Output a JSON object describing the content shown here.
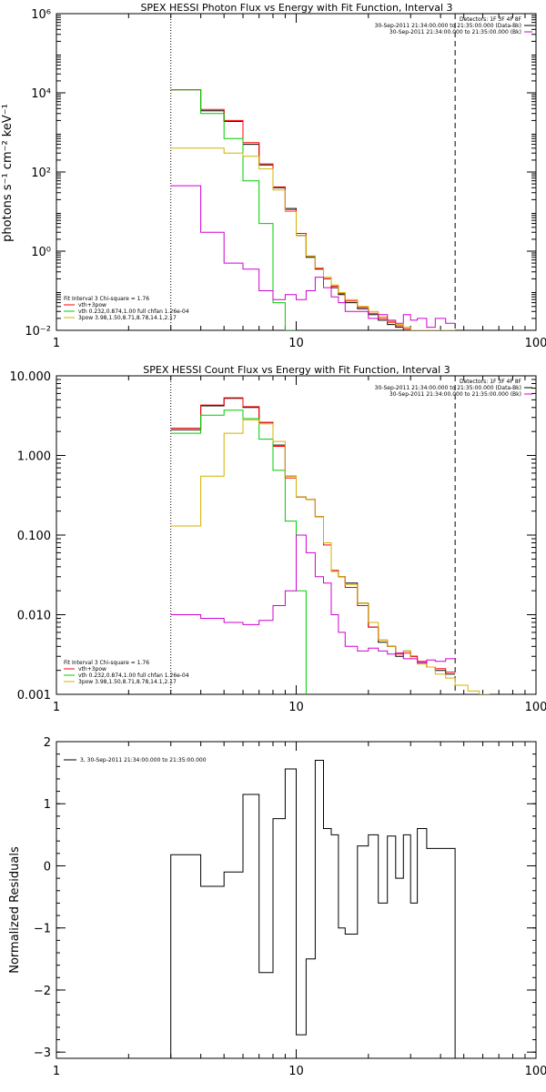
{
  "chart_data": [
    {
      "type": "line",
      "title": "SPEX HESSI Photon Flux vs Energy with Fit Function, Interval 3",
      "ylabel": "photons s⁻¹ cm⁻² keV⁻¹",
      "xlabel": "",
      "xscale": "log",
      "yscale": "log",
      "xlim": [
        1,
        100
      ],
      "ylim": [
        0.01,
        1000000
      ],
      "xticks": [
        {
          "value": 1,
          "label": "1"
        },
        {
          "value": 10,
          "label": "10"
        },
        {
          "value": 100,
          "label": "100"
        }
      ],
      "yticks": [
        {
          "value": 0.01,
          "label": "10⁻²"
        },
        {
          "value": 1,
          "label": "10⁰"
        },
        {
          "value": 100,
          "label": "10²"
        },
        {
          "value": 10000,
          "label": "10⁴"
        },
        {
          "value": 1000000,
          "label": "10⁶"
        }
      ],
      "vlines": [
        {
          "x": 3,
          "style": "dotted"
        },
        {
          "x": 46,
          "style": "dashed"
        }
      ],
      "legend_tr": [
        {
          "text": "Detectors: 1F 3F 4F 8F",
          "color": "#000000"
        },
        {
          "text": "30-Sep-2011 21:34:00.000 to 21:35:00.000 (Data-Bk)",
          "color": "#000000"
        },
        {
          "text": "30-Sep-2011 21:34:00.000 to 21:35:00.000 (Bk)",
          "color": "#d000d0"
        }
      ],
      "legend_bl": [
        {
          "text": "Fit Interval 3   Chi-square = 1.76",
          "color": "#000000"
        },
        {
          "text": "vth+3pow",
          "color": "#ff0000"
        },
        {
          "text": "vth 0.232,0.874,1.00  full chfan 1.26e-04",
          "color": "#00cc00"
        },
        {
          "text": "3pow 3.98,1.50,8.71,8.78,14.1,2.17",
          "color": "#d4b000"
        }
      ],
      "series": [
        {
          "name": "Data-Bk",
          "color": "#000000",
          "edges": [
            3,
            4,
            5,
            6,
            7,
            8,
            9,
            10,
            11,
            12,
            13,
            14,
            15,
            16,
            18,
            20,
            22,
            24,
            26,
            28,
            30,
            32,
            35,
            38,
            42,
            46
          ],
          "values": [
            12000,
            3500,
            1900,
            500,
            150,
            40,
            12,
            2.5,
            0.7,
            0.35,
            0.2,
            0.12,
            0.08,
            0.05,
            0.035,
            0.025,
            0.018,
            0.014,
            0.012,
            0.01,
            0.009,
            0.008,
            0.0075,
            0.0065,
            0.006
          ]
        },
        {
          "name": "vth+3pow",
          "color": "#ff0000",
          "edges": [
            3,
            4,
            5,
            6,
            7,
            8,
            9,
            10,
            11,
            12,
            13,
            14,
            15,
            16,
            18,
            20,
            22,
            24,
            26,
            28,
            30,
            32,
            35,
            38,
            42,
            46
          ],
          "values": [
            12000,
            3800,
            2000,
            550,
            160,
            42,
            11,
            2.8,
            0.75,
            0.36,
            0.2,
            0.13,
            0.085,
            0.055,
            0.038,
            0.027,
            0.02,
            0.016,
            0.013,
            0.011,
            0.0095,
            0.0085,
            0.0075,
            0.007,
            0.0065
          ]
        },
        {
          "name": "vth",
          "color": "#00cc00",
          "edges": [
            3,
            4,
            5,
            6,
            7,
            8,
            9,
            10
          ],
          "values": [
            12000,
            3000,
            700,
            60,
            5,
            0.05,
            0.01
          ]
        },
        {
          "name": "3pow",
          "color": "#d4b000",
          "edges": [
            3,
            4,
            5,
            6,
            7,
            8,
            9,
            10,
            11,
            12,
            13,
            14,
            15,
            16,
            18,
            20,
            22,
            24,
            26,
            28,
            30,
            32,
            35,
            38,
            42,
            46
          ],
          "values": [
            400,
            400,
            300,
            250,
            120,
            35,
            10,
            2.5,
            0.75,
            0.38,
            0.22,
            0.14,
            0.09,
            0.06,
            0.04,
            0.03,
            0.022,
            0.017,
            0.014,
            0.012,
            0.01,
            0.009,
            0.008,
            0.007,
            0.0065
          ]
        },
        {
          "name": "Bk",
          "color": "#d000d0",
          "edges": [
            3,
            4,
            5,
            6,
            7,
            8,
            9,
            10,
            11,
            12,
            13,
            14,
            15,
            16,
            18,
            20,
            22,
            24,
            26,
            28,
            30,
            32,
            35,
            38,
            42,
            46
          ],
          "values": [
            45,
            3,
            0.5,
            0.35,
            0.1,
            0.06,
            0.08,
            0.06,
            0.1,
            0.22,
            0.12,
            0.07,
            0.05,
            0.03,
            0.03,
            0.02,
            0.025,
            0.018,
            0.015,
            0.025,
            0.018,
            0.02,
            0.012,
            0.02,
            0.015
          ]
        }
      ]
    },
    {
      "type": "line",
      "title": "SPEX HESSI Count Flux vs Energy with Fit Function, Interval 3",
      "ylabel": "",
      "xlabel": "",
      "xscale": "log",
      "yscale": "log",
      "xlim": [
        1,
        100
      ],
      "ylim": [
        0.001,
        10
      ],
      "xticks": [
        {
          "value": 1,
          "label": "1"
        },
        {
          "value": 10,
          "label": "10"
        },
        {
          "value": 100,
          "label": "100"
        }
      ],
      "yticks": [
        {
          "value": 0.001,
          "label": "0.001"
        },
        {
          "value": 0.01,
          "label": "0.010"
        },
        {
          "value": 0.1,
          "label": "0.100"
        },
        {
          "value": 1,
          "label": "1.000"
        },
        {
          "value": 10,
          "label": "10.000"
        }
      ],
      "vlines": [
        {
          "x": 3,
          "style": "dotted"
        },
        {
          "x": 46,
          "style": "dashed"
        }
      ],
      "legend_tr": [
        {
          "text": "Detectors: 1F 3F 4F 8F",
          "color": "#000000"
        },
        {
          "text": "30-Sep-2011 21:34:00.000 to 21:35:00.000 (Data-Bk)",
          "color": "#000000"
        },
        {
          "text": "30-Sep-2011 21:34:00.000 to 21:35:00.000 (Bk)",
          "color": "#d000d0"
        }
      ],
      "legend_bl": [
        {
          "text": "Fit Interval 3   Chi-square = 1.76",
          "color": "#000000"
        },
        {
          "text": "vth+3pow",
          "color": "#ff0000"
        },
        {
          "text": "vth 0.232,0.874,1.00  full chfan 1.26e-04",
          "color": "#00cc00"
        },
        {
          "text": "3pow 3.98,1.50,8.71,8.78,14.1,2.17",
          "color": "#d4b000"
        }
      ],
      "series": [
        {
          "name": "Data-Bk",
          "color": "#000000",
          "edges": [
            3,
            4,
            5,
            6,
            7,
            8,
            9,
            10,
            11,
            12,
            13,
            14,
            15,
            16,
            18,
            20,
            22,
            24,
            26,
            28,
            30,
            32,
            35,
            38,
            42,
            46
          ],
          "values": [
            2.1,
            4.2,
            5.2,
            4.0,
            2.6,
            1.35,
            0.55,
            0.3,
            0.28,
            0.17,
            0.08,
            0.035,
            0.03,
            0.025,
            0.014,
            0.007,
            0.0045,
            0.004,
            0.003,
            0.0035,
            0.003,
            0.0025,
            0.0022,
            0.002,
            0.0018
          ]
        },
        {
          "name": "vth+3pow",
          "color": "#ff0000",
          "edges": [
            3,
            4,
            5,
            6,
            7,
            8,
            9,
            10,
            11,
            12,
            13,
            14,
            15,
            16,
            18,
            20,
            22,
            24,
            26,
            28,
            30,
            32,
            35,
            38,
            42,
            46
          ],
          "values": [
            2.2,
            4.3,
            5.3,
            4.1,
            2.6,
            1.3,
            0.52,
            0.3,
            0.28,
            0.17,
            0.075,
            0.036,
            0.03,
            0.022,
            0.013,
            0.007,
            0.0048,
            0.004,
            0.0032,
            0.0033,
            0.003,
            0.0026,
            0.0022,
            0.0021,
            0.0019
          ]
        },
        {
          "name": "vth",
          "color": "#00cc00",
          "edges": [
            3,
            4,
            5,
            6,
            7,
            8,
            9,
            10,
            11
          ],
          "values": [
            1.9,
            3.2,
            3.7,
            2.9,
            1.6,
            0.65,
            0.15,
            0.02,
            0.0009
          ]
        },
        {
          "name": "3pow",
          "color": "#d4b000",
          "edges": [
            3,
            4,
            5,
            6,
            7,
            8,
            9,
            10,
            11,
            12,
            13,
            14,
            15,
            16,
            18,
            20,
            22,
            24,
            26,
            28,
            30,
            32,
            35,
            38,
            42,
            46,
            52,
            58,
            64
          ],
          "values": [
            0.13,
            0.55,
            1.9,
            2.8,
            2.5,
            1.5,
            0.55,
            0.3,
            0.28,
            0.17,
            0.08,
            0.035,
            0.03,
            0.024,
            0.014,
            0.008,
            0.0048,
            0.004,
            0.0033,
            0.0035,
            0.0028,
            0.0024,
            0.0022,
            0.0018,
            0.0016,
            0.0013,
            0.0011,
            0.001
          ]
        },
        {
          "name": "Bk",
          "color": "#d000d0",
          "edges": [
            3,
            4,
            5,
            6,
            7,
            8,
            9,
            10,
            11,
            12,
            13,
            14,
            15,
            16,
            18,
            20,
            22,
            24,
            26,
            28,
            30,
            32,
            35,
            38,
            42,
            46
          ],
          "values": [
            0.01,
            0.009,
            0.008,
            0.0075,
            0.0085,
            0.013,
            0.02,
            0.1,
            0.06,
            0.03,
            0.025,
            0.01,
            0.006,
            0.004,
            0.0035,
            0.0038,
            0.0035,
            0.0032,
            0.0033,
            0.0028,
            0.0028,
            0.0025,
            0.0027,
            0.0026,
            0.0028
          ]
        }
      ]
    },
    {
      "type": "line",
      "title": "",
      "ylabel": "Normalized Residuals",
      "xlabel": "",
      "xscale": "log",
      "yscale": "linear",
      "xlim": [
        1,
        100
      ],
      "ylim": [
        -3.1,
        2
      ],
      "xticks": [
        {
          "value": 1,
          "label": "1"
        },
        {
          "value": 10,
          "label": "10"
        },
        {
          "value": 100,
          "label": "100"
        }
      ],
      "yticks": [
        {
          "value": -3,
          "label": "−3"
        },
        {
          "value": -2,
          "label": "−2"
        },
        {
          "value": -1,
          "label": "−1"
        },
        {
          "value": 0,
          "label": "0"
        },
        {
          "value": 1,
          "label": "1"
        },
        {
          "value": 2,
          "label": "2"
        }
      ],
      "legend_tl": [
        {
          "text": "3, 30-Sep-2011 21:34:00.000 to 21:35:00.000",
          "color": "#000000"
        }
      ],
      "series": [
        {
          "name": "3, 30-Sep-2011 21:34:00.000 to 21:35:00.000",
          "color": "#000000",
          "drop_to_bottom": true,
          "edges": [
            3,
            4,
            5,
            6,
            7,
            8,
            9,
            10,
            11,
            12,
            13,
            14,
            15,
            16,
            18,
            20,
            22,
            24,
            26,
            28,
            30,
            32,
            35,
            38,
            42,
            46
          ],
          "values": [
            0.18,
            -0.33,
            -0.1,
            1.15,
            -1.72,
            0.76,
            1.56,
            -2.72,
            -1.5,
            1.7,
            0.6,
            0.5,
            -1.0,
            -1.1,
            0.32,
            0.5,
            -0.6,
            0.48,
            -0.2,
            0.5,
            -0.6,
            0.6,
            0.28,
            0.28,
            0.28
          ]
        }
      ]
    }
  ]
}
